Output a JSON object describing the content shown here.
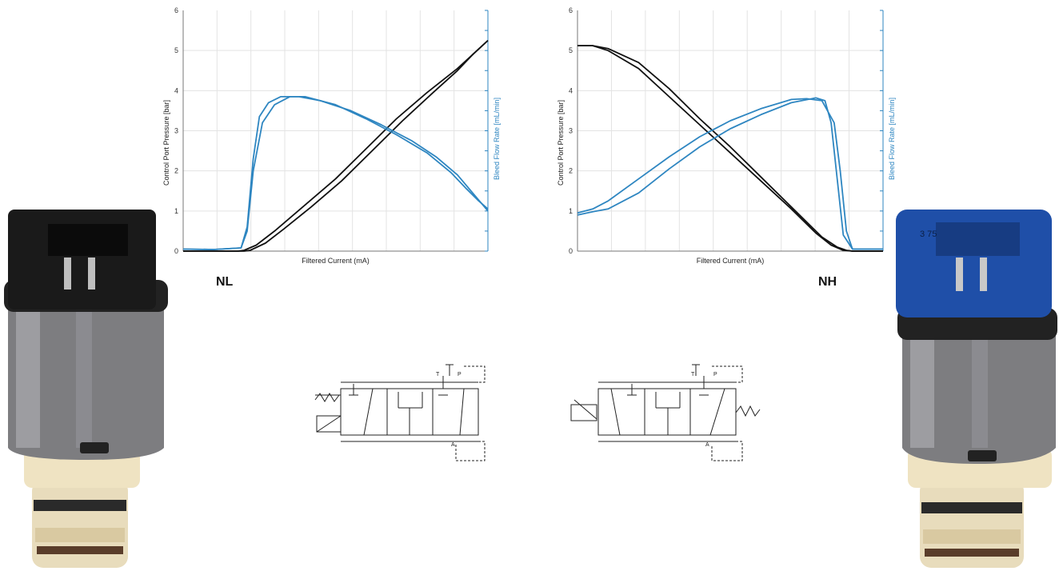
{
  "colors": {
    "pressure": "#111111",
    "flow": "#2e86c1",
    "grid": "#e3e3e3",
    "axis": "#777777"
  },
  "labels": {
    "nl": "NL",
    "nh": "NH"
  },
  "schematic_letters": {
    "t": "T",
    "p": "P",
    "a": "A"
  },
  "solenoid_images": [
    {
      "name": "nl-solenoid",
      "cap": "black",
      "cap_color": "#1a1a1a"
    },
    {
      "name": "nh-solenoid",
      "cap": "blue",
      "cap_color": "#1f4fa8",
      "cap_text": "3 75"
    }
  ],
  "chart_data": [
    {
      "type": "line",
      "variant": "NL",
      "xlabel": "Filtered Current (mA)",
      "ylabel": "Control Port Pressure [bar]",
      "y2label": "Bleed Flow Rate [mL/min]",
      "ylim": [
        0,
        6
      ],
      "yticks": [
        "0",
        "1",
        "2",
        "3",
        "4",
        "5",
        "6"
      ],
      "xlim": [
        0,
        1
      ],
      "grid": true,
      "series": [
        {
          "role": "pressure-up",
          "x": [
            0,
            0.1,
            0.18,
            0.2,
            0.24,
            0.3,
            0.4,
            0.5,
            0.6,
            0.7,
            0.8,
            0.9,
            0.95,
            1.0
          ],
          "y": [
            0,
            0,
            0,
            0.02,
            0.15,
            0.5,
            1.15,
            1.8,
            2.55,
            3.3,
            3.95,
            4.55,
            4.9,
            5.25
          ]
        },
        {
          "role": "pressure-down",
          "x": [
            0,
            0.1,
            0.2,
            0.22,
            0.27,
            0.33,
            0.42,
            0.52,
            0.62,
            0.72,
            0.82,
            0.9,
            0.95,
            1.0
          ],
          "y": [
            0,
            0,
            0,
            0.02,
            0.2,
            0.55,
            1.1,
            1.75,
            2.5,
            3.25,
            3.95,
            4.5,
            4.9,
            5.25
          ]
        },
        {
          "role": "flow-up",
          "x": [
            0,
            0.1,
            0.19,
            0.21,
            0.23,
            0.26,
            0.3,
            0.35,
            0.4,
            0.5,
            0.6,
            0.7,
            0.8,
            0.88,
            0.93,
            0.97,
            1.0
          ],
          "y": [
            0.05,
            0.04,
            0.08,
            0.5,
            2.0,
            3.2,
            3.65,
            3.85,
            3.85,
            3.65,
            3.3,
            2.9,
            2.45,
            1.95,
            1.55,
            1.25,
            1.05
          ]
        },
        {
          "role": "flow-down",
          "x": [
            0,
            0.1,
            0.19,
            0.21,
            0.23,
            0.25,
            0.28,
            0.32,
            0.38,
            0.45,
            0.55,
            0.65,
            0.75,
            0.83,
            0.9,
            0.95,
            1.0
          ],
          "y": [
            0.05,
            0.04,
            0.08,
            0.6,
            2.3,
            3.35,
            3.7,
            3.85,
            3.85,
            3.75,
            3.5,
            3.15,
            2.75,
            2.35,
            1.9,
            1.45,
            1.0
          ]
        }
      ]
    },
    {
      "type": "line",
      "variant": "NH",
      "xlabel": "Filtered Current (mA)",
      "ylabel": "Control Port Pressure [bar]",
      "y2label": "Bleed Flow Rate [mL/min]",
      "ylim": [
        0,
        6
      ],
      "yticks": [
        "0",
        "1",
        "2",
        "3",
        "4",
        "5",
        "6"
      ],
      "xlim": [
        0,
        1
      ],
      "grid": true,
      "series": [
        {
          "role": "pressure-up",
          "x": [
            0,
            0.05,
            0.1,
            0.2,
            0.3,
            0.4,
            0.5,
            0.6,
            0.7,
            0.8,
            0.85,
            0.88,
            0.9,
            1.0
          ],
          "y": [
            5.12,
            5.12,
            5.05,
            4.7,
            4.05,
            3.3,
            2.6,
            1.85,
            1.1,
            0.35,
            0.1,
            0.02,
            0,
            0
          ]
        },
        {
          "role": "pressure-down",
          "x": [
            0,
            0.05,
            0.1,
            0.2,
            0.3,
            0.4,
            0.5,
            0.6,
            0.7,
            0.78,
            0.83,
            0.87,
            0.9,
            1.0
          ],
          "y": [
            5.12,
            5.12,
            5.0,
            4.55,
            3.85,
            3.15,
            2.45,
            1.75,
            1.05,
            0.45,
            0.15,
            0.02,
            0,
            0
          ]
        },
        {
          "role": "flow-up",
          "x": [
            0,
            0.05,
            0.1,
            0.2,
            0.3,
            0.4,
            0.5,
            0.6,
            0.7,
            0.75,
            0.8,
            0.84,
            0.86,
            0.88,
            0.9,
            1.0
          ],
          "y": [
            0.95,
            1.05,
            1.25,
            1.8,
            2.35,
            2.85,
            3.25,
            3.55,
            3.78,
            3.8,
            3.75,
            3.2,
            2.0,
            0.5,
            0.05,
            0.05
          ]
        },
        {
          "role": "flow-down",
          "x": [
            0,
            0.05,
            0.1,
            0.2,
            0.3,
            0.4,
            0.5,
            0.6,
            0.7,
            0.78,
            0.81,
            0.83,
            0.85,
            0.87,
            0.9,
            1.0
          ],
          "y": [
            0.9,
            0.98,
            1.05,
            1.45,
            2.05,
            2.6,
            3.05,
            3.4,
            3.7,
            3.82,
            3.75,
            3.2,
            1.8,
            0.4,
            0.05,
            0.05
          ]
        }
      ]
    }
  ]
}
